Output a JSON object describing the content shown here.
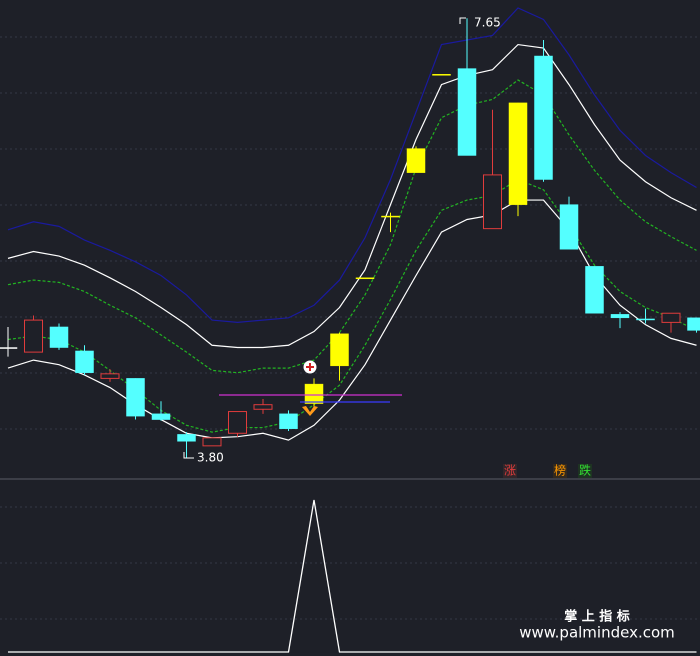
{
  "chart_data": [
    {
      "type": "candlestick",
      "open": [
        4.77,
        4.73,
        4.95,
        4.74,
        4.5,
        4.5,
        4.19,
        4.01,
        3.91,
        4.02,
        4.23,
        4.19,
        4.28,
        4.61,
        5.38,
        5.92,
        6.3,
        7.16,
        7.21,
        5.81,
        6.02,
        7.32,
        6.02,
        5.48,
        5.06,
        5.02,
        4.99,
        5.03
      ],
      "high": [
        4.95,
        5.05,
        4.98,
        4.79,
        4.58,
        4.5,
        4.3,
        4.03,
        3.98,
        4.21,
        4.32,
        4.22,
        4.5,
        4.9,
        5.38,
        5.95,
        6.53,
        7.16,
        7.65,
        6.85,
        6.91,
        7.46,
        6.09,
        5.48,
        5.08,
        5.11,
        5.07,
        5.03
      ],
      "low": [
        4.69,
        4.73,
        4.75,
        4.53,
        4.47,
        4.14,
        4.13,
        3.8,
        3.91,
        3.99,
        4.19,
        4.04,
        4.22,
        4.48,
        5.38,
        5.78,
        6.3,
        7.16,
        6.45,
        5.81,
        5.92,
        6.22,
        5.63,
        5.07,
        4.94,
        4.98,
        4.9,
        4.9
      ],
      "close": [
        4.77,
        5.01,
        4.77,
        4.55,
        4.54,
        4.17,
        4.14,
        3.95,
        3.98,
        4.21,
        4.27,
        4.06,
        4.45,
        4.89,
        5.38,
        5.92,
        6.51,
        7.16,
        6.45,
        6.28,
        6.91,
        6.24,
        5.63,
        5.07,
        5.03,
        5.02,
        5.07,
        4.92
      ],
      "candle_colors": [
        "#ffffff",
        "#e03c3c",
        "#54ffff",
        "#54ffff",
        "#e03c3c",
        "#54ffff",
        "#54ffff",
        "#54ffff",
        "#e03c3c",
        "#e03c3c",
        "#e03c3c",
        "#54ffff",
        "#ffff00",
        "#ffff00",
        "#ffff00",
        "#ffff00",
        "#ffff00",
        "#ffff00",
        "#54ffff",
        "#e03c3c",
        "#ffff00",
        "#54ffff",
        "#54ffff",
        "#54ffff",
        "#54ffff",
        "#54ffff",
        "#e03c3c",
        "#54ffff"
      ],
      "hollow_color": "#e03c3c",
      "lines": [
        {
          "color": "#1a1a9e",
          "dash": false,
          "values": [
            5.8,
            5.87,
            5.83,
            5.71,
            5.62,
            5.52,
            5.4,
            5.23,
            5.01,
            4.99,
            5.01,
            5.03,
            5.14,
            5.36,
            5.73,
            6.24,
            6.83,
            7.42,
            7.46,
            7.5,
            7.74,
            7.64,
            7.33,
            6.98,
            6.67,
            6.45,
            6.3,
            6.17
          ]
        },
        {
          "color": "#ffffff",
          "dash": false,
          "values": [
            5.55,
            5.61,
            5.57,
            5.49,
            5.38,
            5.26,
            5.12,
            4.97,
            4.79,
            4.77,
            4.77,
            4.79,
            4.91,
            5.12,
            5.45,
            6.02,
            6.59,
            7.07,
            7.15,
            7.2,
            7.42,
            7.39,
            7.07,
            6.72,
            6.41,
            6.22,
            6.08,
            5.97
          ]
        },
        {
          "color": "#22b422",
          "dash": true,
          "values": [
            5.32,
            5.36,
            5.34,
            5.26,
            5.14,
            5.03,
            4.88,
            4.73,
            4.57,
            4.55,
            4.59,
            4.59,
            4.66,
            4.9,
            5.23,
            5.67,
            6.34,
            6.78,
            6.89,
            6.94,
            7.11,
            6.98,
            6.63,
            6.32,
            6.06,
            5.87,
            5.74,
            5.62
          ]
        },
        {
          "color": "#22b422",
          "dash": true,
          "values": [
            4.84,
            4.87,
            4.84,
            4.73,
            4.57,
            4.4,
            4.22,
            4.09,
            4.03,
            4.07,
            4.07,
            4.12,
            4.27,
            4.44,
            4.79,
            5.19,
            5.62,
            5.97,
            6.06,
            6.1,
            6.24,
            6.15,
            5.84,
            5.49,
            5.26,
            5.12,
            5.03,
            4.92
          ]
        },
        {
          "color": "#ffffff",
          "dash": false,
          "values": [
            4.59,
            4.66,
            4.62,
            4.53,
            4.42,
            4.27,
            4.14,
            4.02,
            3.98,
            3.99,
            4.02,
            3.96,
            4.09,
            4.31,
            4.62,
            5.01,
            5.4,
            5.78,
            5.89,
            5.93,
            6.06,
            6.06,
            5.8,
            5.4,
            5.14,
            4.97,
            4.85,
            4.79
          ]
        }
      ],
      "ylim": [
        3.62,
        7.81
      ],
      "annotations": [
        "7.65",
        "3.80"
      ],
      "signals": [
        "涨",
        "榜",
        "跌"
      ]
    },
    {
      "type": "line",
      "color": "#ffffff",
      "values": [
        0,
        0,
        0,
        0,
        0,
        0,
        0,
        0,
        0,
        0,
        0,
        0,
        1,
        0,
        0,
        0,
        0,
        0,
        0,
        0,
        0,
        0,
        0,
        0,
        0,
        0,
        0,
        0
      ],
      "ylim": [
        0,
        1
      ]
    }
  ],
  "watermark": {
    "title": "掌 上 指 标",
    "url": "www.palmindex.com"
  }
}
